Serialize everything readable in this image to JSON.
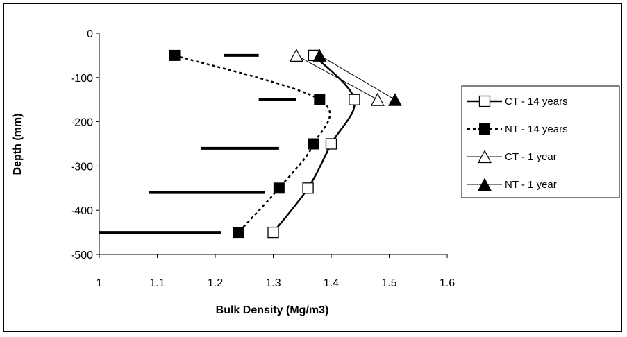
{
  "chart_data": {
    "type": "scatter",
    "xlabel": "Bulk Density (Mg/m3)",
    "ylabel": "Depth (mm)",
    "xlim": [
      1,
      1.6
    ],
    "ylim": [
      -500,
      0
    ],
    "x_ticks": [
      "1",
      "1.1",
      "1.2",
      "1.3",
      "1.4",
      "1.5",
      "1.6"
    ],
    "y_ticks": [
      "0",
      "-100",
      "-200",
      "-300",
      "-400",
      "-500"
    ],
    "grid": false,
    "legend_position": "right",
    "series": [
      {
        "name": "CT - 14 years",
        "marker": "square-open",
        "line": "solid-thick",
        "x": [
          1.37,
          1.44,
          1.4,
          1.36,
          1.3
        ],
        "y": [
          -50,
          -150,
          -250,
          -350,
          -450
        ]
      },
      {
        "name": "NT - 14 years",
        "marker": "square-filled",
        "line": "dotted-thick",
        "x": [
          1.13,
          1.38,
          1.37,
          1.31,
          1.24
        ],
        "y": [
          -50,
          -150,
          -250,
          -350,
          -450
        ]
      },
      {
        "name": "CT - 1 year",
        "marker": "triangle-open",
        "line": "thin",
        "x": [
          1.34,
          1.48
        ],
        "y": [
          -50,
          -150
        ]
      },
      {
        "name": "NT - 1 year",
        "marker": "triangle-filled",
        "line": "thin",
        "x": [
          1.38,
          1.51
        ],
        "y": [
          -50,
          -150
        ]
      }
    ],
    "error_bars": [
      {
        "y": -50,
        "x_start": 1.215,
        "x_end": 1.275
      },
      {
        "y": -150,
        "x_start": 1.275,
        "x_end": 1.34
      },
      {
        "y": -260,
        "x_start": 1.175,
        "x_end": 1.31
      },
      {
        "y": -360,
        "x_start": 1.085,
        "x_end": 1.285
      },
      {
        "y": -450,
        "x_start": 1.0,
        "x_end": 1.21
      }
    ]
  }
}
